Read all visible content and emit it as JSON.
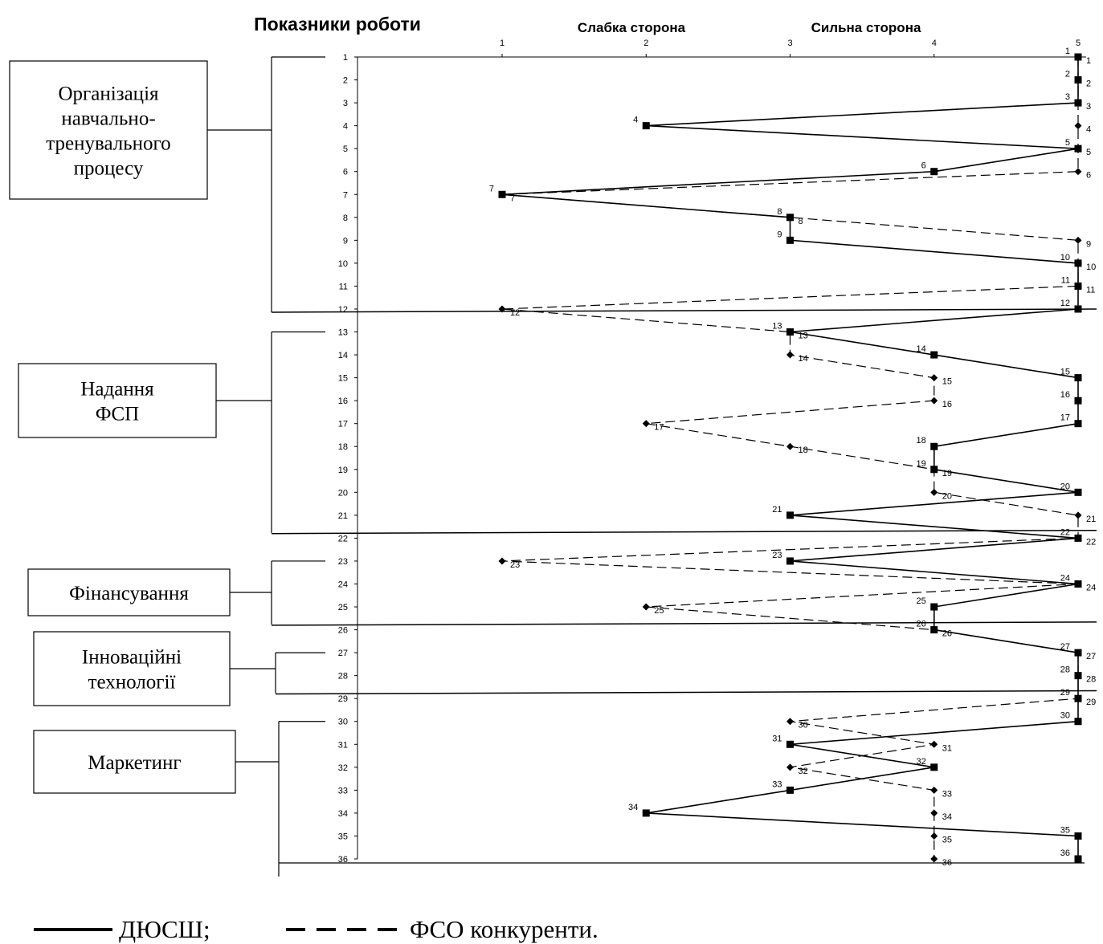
{
  "chart_data": {
    "type": "line",
    "title": "Показники роботи",
    "x_header_weak": "Слабка сторона",
    "x_header_strong": "Сильна сторона",
    "x_ticks": [
      "1",
      "2",
      "3",
      "4",
      "5"
    ],
    "xlim": [
      1,
      5
    ],
    "y_ticks": [
      "1",
      "2",
      "3",
      "4",
      "5",
      "6",
      "7",
      "8",
      "9",
      "10",
      "11",
      "12",
      "13",
      "14",
      "15",
      "16",
      "17",
      "18",
      "19",
      "20",
      "21",
      "22",
      "23",
      "24",
      "25",
      "26",
      "27",
      "28",
      "29",
      "30",
      "31",
      "32",
      "33",
      "34",
      "35",
      "36"
    ],
    "y_range": [
      1,
      36
    ],
    "y_inverted": true,
    "grid": false,
    "groups": [
      {
        "label_lines": [
          "Організація",
          "навчально-",
          "тренувального",
          "процесу"
        ],
        "from": 1,
        "to": 12
      },
      {
        "label_lines": [
          "Надання",
          "ФСП"
        ],
        "from": 13,
        "to": 21
      },
      {
        "label_lines": [
          "Фінансування"
        ],
        "from": 23,
        "to": 25
      },
      {
        "label_lines": [
          "Інноваційні",
          "технології"
        ],
        "from": 27,
        "to": 28
      },
      {
        "label_lines": [
          "Маркетинг"
        ],
        "from": 30,
        "to": 36
      }
    ],
    "group_separators": [
      12,
      21.8,
      25.8,
      28.8
    ],
    "series": [
      {
        "name": "ДЮСШ;",
        "style": "solid",
        "marker": "square",
        "color": "#000000",
        "values": [
          5,
          5,
          5,
          2,
          5,
          4,
          1,
          3,
          3,
          5,
          5,
          5,
          3,
          4,
          5,
          5,
          5,
          4,
          4,
          5,
          3,
          5,
          3,
          5,
          4,
          4,
          5,
          5,
          5,
          5,
          3,
          4,
          3,
          2,
          5,
          5
        ]
      },
      {
        "name": "ФСО конкуренти.",
        "style": "dashed",
        "marker": "diamond",
        "color": "#000000",
        "values": [
          5,
          5,
          5,
          5,
          5,
          5,
          1,
          3,
          5,
          5,
          5,
          1,
          3,
          3,
          4,
          4,
          2,
          3,
          4,
          4,
          5,
          5,
          1,
          5,
          2,
          4,
          5,
          5,
          5,
          3,
          4,
          3,
          4,
          4,
          4,
          4
        ]
      }
    ]
  }
}
